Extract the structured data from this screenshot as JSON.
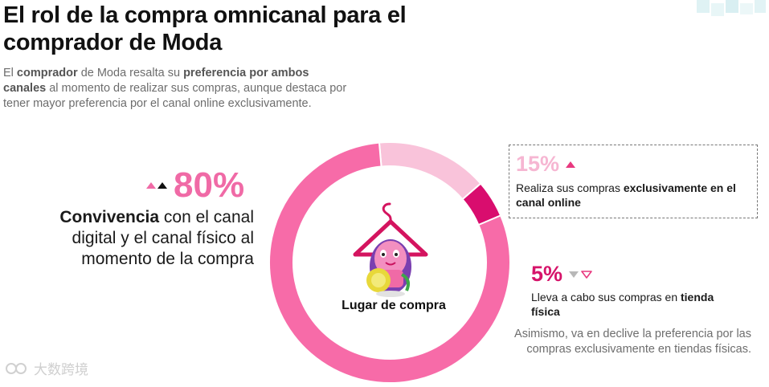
{
  "title": "El rol de la compra omnicanal para el comprador de Moda",
  "intro": {
    "t1": "El ",
    "b1": "comprador",
    "t2": " de Moda resalta su ",
    "b2": "preferencia por ambos canales",
    "t3": " al momento de realizar sus compras, aunque destaca por tener mayor preferencia por el canal online exclusivamente."
  },
  "convivencia": {
    "pct": "80%",
    "bold": "Convivencia",
    "rest": " con el canal digital y el canal físico al momento de la compra"
  },
  "online": {
    "pct": "15%",
    "t1": "Realiza sus compras ",
    "b1": "exclusivamente en el canal online"
  },
  "store": {
    "pct": "5%",
    "t1": "Lleva a cabo sus compras en ",
    "b1": "tienda física"
  },
  "decline_note": "Asimismo, va en declive la preferencia por las compras exclusivamente en tiendas físicas.",
  "center_label": "Lugar de compra",
  "watermark": "大数跨境",
  "chart_data": {
    "type": "pie",
    "categories": [
      "Convivencia",
      "Exclusivamente en el canal online",
      "Tienda física"
    ],
    "values": [
      80,
      15,
      5
    ],
    "colors": [
      "#f76ba8",
      "#f9c3da",
      "#d90d6e"
    ],
    "title": "Lugar de compra"
  },
  "colors": {
    "primary_pink": "#f06aa6",
    "light_pink": "#f9c3da",
    "magenta": "#d90d6e"
  }
}
